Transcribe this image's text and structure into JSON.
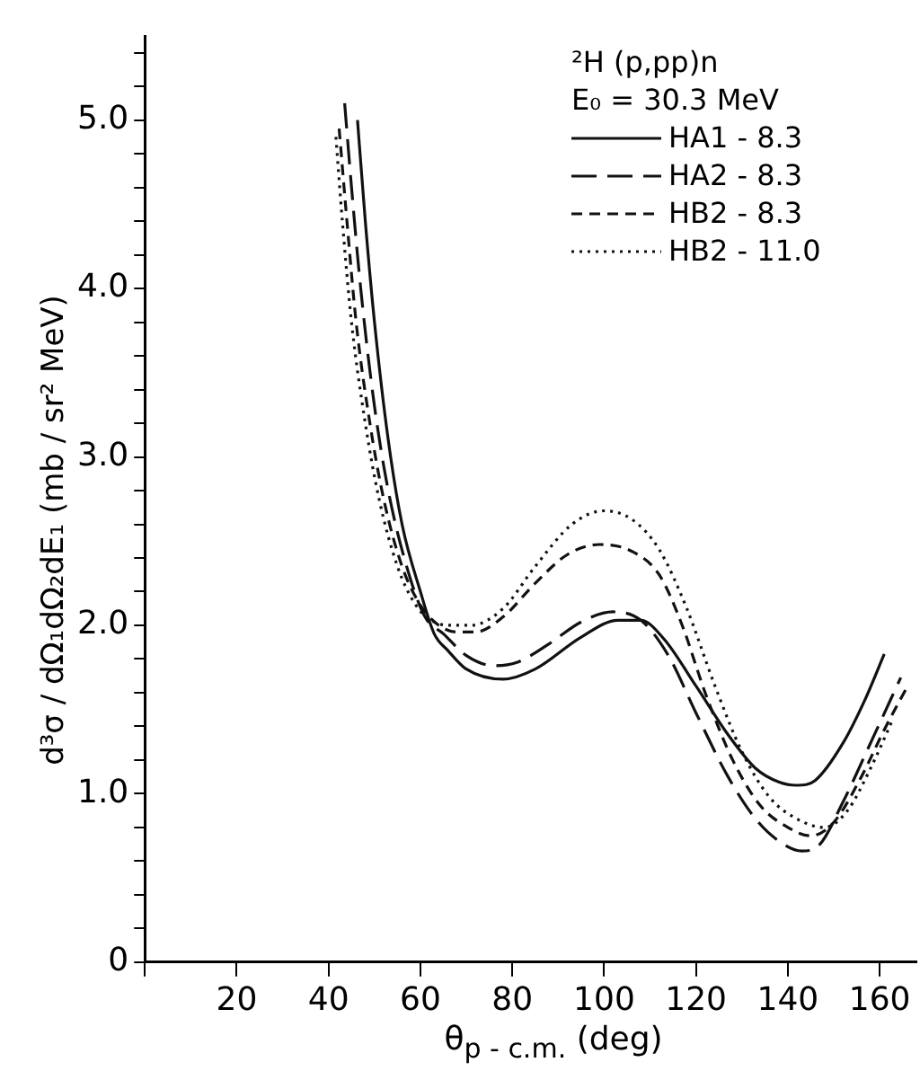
{
  "chart_data": {
    "type": "line",
    "xlabel": "θ$_{p - c.m.}$ (deg)",
    "ylabel": "d³σ / dΩ₁dΩ₂dE₁  (mb / sr² MeV)",
    "legend_title": "²H (p,pp)n",
    "annotations": [
      "E₀ = 30.3 MeV"
    ],
    "legend": "top right",
    "grid": false,
    "marker": "none",
    "xlim": [
      0,
      168
    ],
    "xticks": [
      {
        "value": 0,
        "label": null
      },
      20,
      40,
      60,
      80,
      100,
      120,
      140,
      160
    ],
    "ylim": [
      0,
      5.5
    ],
    "yticks": [
      {
        "value": 0,
        "label": "0"
      },
      {
        "value": 0.2,
        "label": null
      },
      {
        "value": 0.4,
        "label": null
      },
      {
        "value": 0.6,
        "label": null
      },
      {
        "value": 0.8,
        "label": null
      },
      {
        "value": 1,
        "label": "1.0"
      },
      {
        "value": 1.2,
        "label": null
      },
      {
        "value": 1.4,
        "label": null
      },
      {
        "value": 1.6,
        "label": null
      },
      {
        "value": 1.8,
        "label": null
      },
      {
        "value": 2,
        "label": "2.0"
      },
      {
        "value": 2.2,
        "label": null
      },
      {
        "value": 2.4,
        "label": null
      },
      {
        "value": 2.6,
        "label": null
      },
      {
        "value": 2.8,
        "label": null
      },
      {
        "value": 3,
        "label": "3.0"
      },
      {
        "value": 3.2,
        "label": null
      },
      {
        "value": 3.4,
        "label": null
      },
      {
        "value": 3.6,
        "label": null
      },
      {
        "value": 3.8,
        "label": null
      },
      {
        "value": 4,
        "label": "4.0"
      },
      {
        "value": 4.2,
        "label": null
      },
      {
        "value": 4.4,
        "label": null
      },
      {
        "value": 4.6,
        "label": null
      },
      {
        "value": 4.8,
        "label": null
      },
      {
        "value": 5,
        "label": "5.0"
      },
      {
        "value": 5.2,
        "label": null
      },
      {
        "value": 5.4,
        "label": null
      }
    ],
    "series": [
      {
        "name": "HA1 - 8.3",
        "color": "#111111",
        "line_style": "solid",
        "x": [
          46.3,
          48,
          50,
          53,
          56,
          60,
          63,
          66,
          70,
          78,
          85,
          95,
          103,
          108,
          113,
          120,
          127,
          133,
          138,
          142,
          146,
          152,
          157,
          161
        ],
        "values": [
          5.0,
          4.4,
          3.8,
          3.1,
          2.6,
          2.2,
          1.95,
          1.85,
          1.74,
          1.68,
          1.74,
          1.93,
          2.03,
          2.03,
          1.92,
          1.64,
          1.35,
          1.15,
          1.07,
          1.05,
          1.08,
          1.3,
          1.57,
          1.83
        ]
      },
      {
        "name": "HA2 - 8.3",
        "color": "#111111",
        "line_style": "long-dashed",
        "x": [
          43.5,
          45,
          47,
          50,
          53,
          57,
          61,
          65,
          70,
          76,
          81,
          88,
          95,
          102,
          108,
          114,
          120,
          127,
          133,
          138,
          143,
          147,
          152,
          158,
          164.6
        ],
        "values": [
          5.1,
          4.6,
          4.0,
          3.3,
          2.8,
          2.35,
          2.05,
          1.95,
          1.82,
          1.76,
          1.78,
          1.89,
          2.02,
          2.08,
          2.03,
          1.82,
          1.48,
          1.1,
          0.85,
          0.72,
          0.66,
          0.7,
          0.95,
          1.3,
          1.69
        ]
      },
      {
        "name": "HB2 - 8.3",
        "color": "#111111",
        "line_style": "dashed",
        "x": [
          42.3,
          44,
          46,
          49,
          52,
          56,
          60,
          64,
          68,
          72,
          78,
          85,
          92,
          99,
          106,
          112,
          117,
          122,
          128,
          134,
          140,
          145,
          150,
          156,
          161,
          165.7
        ],
        "values": [
          4.95,
          4.4,
          3.8,
          3.2,
          2.75,
          2.35,
          2.12,
          2.0,
          1.96,
          1.96,
          2.05,
          2.25,
          2.42,
          2.48,
          2.44,
          2.3,
          2.0,
          1.6,
          1.2,
          0.93,
          0.8,
          0.75,
          0.83,
          1.1,
          1.38,
          1.62
        ]
      },
      {
        "name": "HB2 - 11.0",
        "color": "#111111",
        "line_style": "dotted",
        "x": [
          41.6,
          43,
          45,
          48,
          51,
          55,
          59,
          63,
          67,
          71,
          78,
          85,
          93,
          100,
          106,
          112,
          118,
          124,
          130,
          136,
          142,
          148,
          153,
          158,
          163
        ],
        "values": [
          4.9,
          4.4,
          3.8,
          3.2,
          2.75,
          2.35,
          2.12,
          2.02,
          2.0,
          2.0,
          2.1,
          2.35,
          2.6,
          2.68,
          2.63,
          2.45,
          2.1,
          1.65,
          1.25,
          0.98,
          0.85,
          0.8,
          0.9,
          1.15,
          1.45
        ]
      }
    ]
  }
}
